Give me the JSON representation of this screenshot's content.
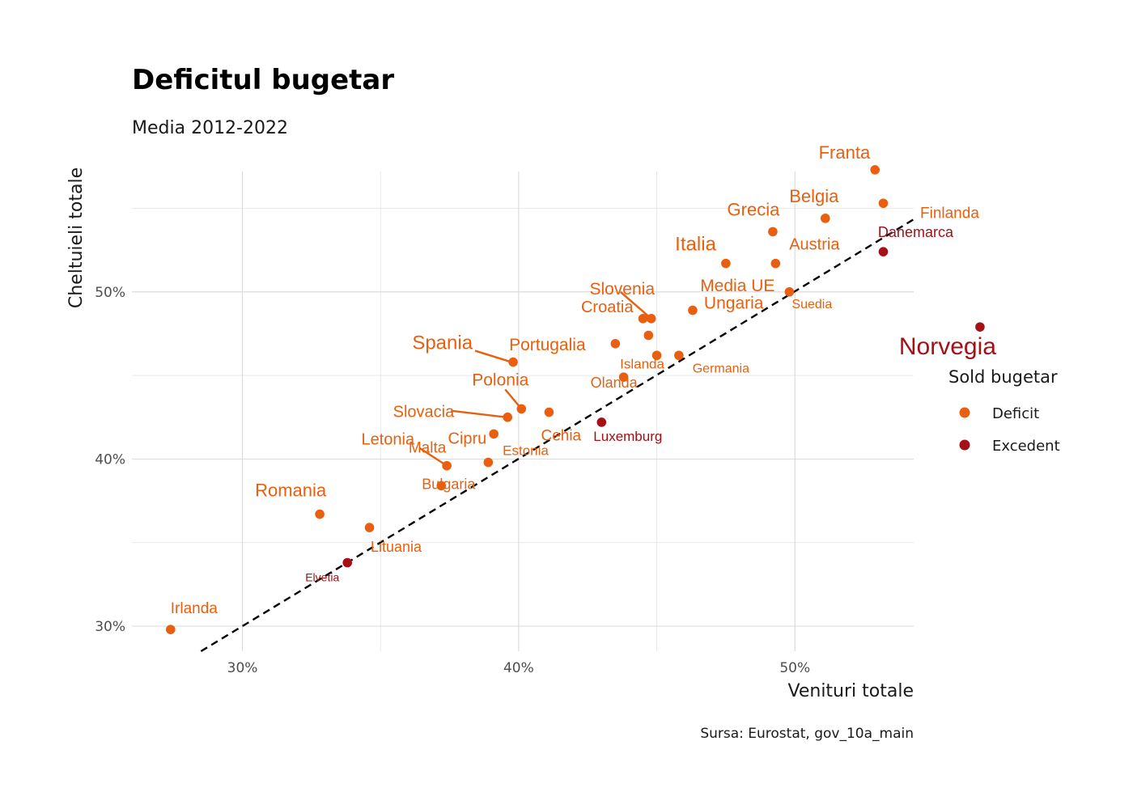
{
  "chart_data": {
    "type": "scatter",
    "title": "Deficitul bugetar",
    "subtitle": "Media 2012-2022",
    "xlabel": "Venituri totale",
    "ylabel": "Cheltuieli totale",
    "caption": "Sursa: Eurostat, gov_10a_main",
    "xlim": [
      26,
      54.3
    ],
    "ylim": [
      28.5,
      57.2
    ],
    "x_ticks": [
      30,
      40,
      50
    ],
    "x_tick_labels": [
      "30%",
      "40%",
      "50%"
    ],
    "y_ticks": [
      30,
      40,
      50
    ],
    "y_tick_labels": [
      "30%",
      "40%",
      "50%"
    ],
    "grid": true,
    "reference_line": {
      "type": "y=x",
      "style": "dashed"
    },
    "legend": {
      "title": "Sold bugetar",
      "position": "right",
      "items": [
        {
          "label": "Deficit",
          "color": "#E8600F"
        },
        {
          "label": "Excedent",
          "color": "#A50F15"
        }
      ]
    },
    "colors": {
      "Deficit": "#E8600F",
      "Excedent": "#A50F15"
    },
    "points": [
      {
        "label": "Franta",
        "x": 52.9,
        "y": 57.3,
        "group": "Deficit"
      },
      {
        "label": "Finlanda",
        "x": 53.2,
        "y": 55.3,
        "group": "Deficit"
      },
      {
        "label": "Belgia",
        "x": 51.1,
        "y": 54.4,
        "group": "Deficit"
      },
      {
        "label": "Grecia",
        "x": 49.2,
        "y": 53.6,
        "group": "Deficit"
      },
      {
        "label": "Danemarca",
        "x": 53.2,
        "y": 52.4,
        "group": "Excedent"
      },
      {
        "label": "Austria",
        "x": 49.3,
        "y": 51.7,
        "group": "Deficit"
      },
      {
        "label": "Italia",
        "x": 47.5,
        "y": 51.7,
        "group": "Deficit"
      },
      {
        "label": "Media UE",
        "x": 49.8,
        "y": 50.0,
        "group": "Deficit"
      },
      {
        "label": "Suedia",
        "x": 49.8,
        "y": 50.0,
        "group": "Deficit"
      },
      {
        "label": "Norvegia",
        "x": 56.7,
        "y": 47.9,
        "group": "Excedent"
      },
      {
        "label": "Slovenia",
        "x": 44.8,
        "y": 48.4,
        "group": "Deficit"
      },
      {
        "label": "Croatia",
        "x": 44.5,
        "y": 48.4,
        "group": "Deficit"
      },
      {
        "label": "Ungaria",
        "x": 46.3,
        "y": 48.9,
        "group": "Deficit"
      },
      {
        "label": "Portugalia",
        "x": 43.5,
        "y": 46.9,
        "group": "Deficit"
      },
      {
        "label": "Spania",
        "x": 39.8,
        "y": 45.8,
        "group": "Deficit"
      },
      {
        "label": "Islanda",
        "x": 45.0,
        "y": 46.2,
        "group": "Deficit"
      },
      {
        "label": "Germania",
        "x": 45.8,
        "y": 46.2,
        "group": "Deficit"
      },
      {
        "label": "Cehia",
        "x": 44.7,
        "y": 47.4,
        "group": "Deficit"
      },
      {
        "label": "Olanda",
        "x": 43.8,
        "y": 44.9,
        "group": "Deficit"
      },
      {
        "label": "Polonia",
        "x": 40.1,
        "y": 43.0,
        "group": "Deficit"
      },
      {
        "label": "Slovacia",
        "x": 39.6,
        "y": 42.5,
        "group": "Deficit"
      },
      {
        "label": "Luxemburg",
        "x": 43.0,
        "y": 42.2,
        "group": "Excedent"
      },
      {
        "label": "Cipru",
        "x": 41.1,
        "y": 42.8,
        "group": "Deficit"
      },
      {
        "label": "Estonia",
        "x": 39.1,
        "y": 41.5,
        "group": "Deficit"
      },
      {
        "label": "Letonia",
        "x": 37.4,
        "y": 39.6,
        "group": "Deficit"
      },
      {
        "label": "Malta",
        "x": 38.9,
        "y": 39.8,
        "group": "Deficit"
      },
      {
        "label": "Bulgaria",
        "x": 37.2,
        "y": 38.4,
        "group": "Deficit"
      },
      {
        "label": "Romania",
        "x": 32.8,
        "y": 36.7,
        "group": "Deficit"
      },
      {
        "label": "Lituania",
        "x": 34.6,
        "y": 35.9,
        "group": "Deficit"
      },
      {
        "label": "Elvetia",
        "x": 33.8,
        "y": 33.8,
        "group": "Excedent"
      },
      {
        "label": "Irlanda",
        "x": 27.4,
        "y": 29.8,
        "group": "Deficit"
      }
    ]
  }
}
